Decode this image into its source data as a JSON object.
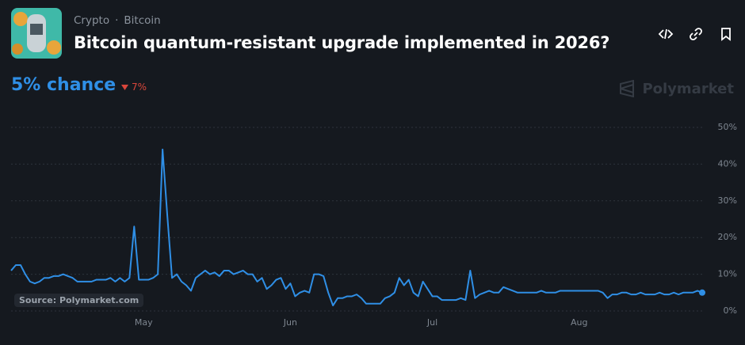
{
  "header": {
    "categories": [
      "Crypto",
      "Bitcoin"
    ],
    "title": "Bitcoin quantum-resistant upgrade implemented in 2026?",
    "chance": "5% chance",
    "change": "7%",
    "brand": "Polymarket"
  },
  "chart_data": {
    "type": "line",
    "color": "#2f8fe6",
    "source": "Source: Polymarket.com",
    "xlim": [
      0,
      146
    ],
    "xticks": [
      {
        "value": 28,
        "label": "May"
      },
      {
        "value": 59,
        "label": "Jun"
      },
      {
        "value": 89,
        "label": "Jul"
      },
      {
        "value": 120,
        "label": "Aug"
      }
    ],
    "ylim": [
      0,
      50
    ],
    "yticks": [
      {
        "value": 0,
        "label": "0%"
      },
      {
        "value": 10,
        "label": "10%"
      },
      {
        "value": 20,
        "label": "20%"
      },
      {
        "value": 30,
        "label": "30%"
      },
      {
        "value": 40,
        "label": "40%"
      },
      {
        "value": 50,
        "label": "50%"
      }
    ],
    "grid": true,
    "values": [
      11,
      12.5,
      12.5,
      10,
      8,
      7.5,
      8,
      9,
      9,
      9.5,
      9.5,
      10,
      9.5,
      9,
      8,
      8,
      8,
      8,
      8.5,
      8.5,
      8.5,
      9,
      8,
      9,
      8,
      9,
      23,
      8.5,
      8.5,
      8.5,
      9,
      10,
      44,
      26,
      9,
      10,
      8,
      7,
      5.5,
      9,
      10,
      11,
      10,
      10.5,
      9.5,
      11,
      11,
      10,
      10.5,
      11,
      10,
      10,
      8,
      9,
      6,
      7,
      8.5,
      9,
      6,
      7.5,
      4,
      5,
      5.5,
      5,
      10,
      10,
      9.5,
      5,
      1.5,
      3.5,
      3.5,
      4,
      4,
      4.5,
      3.5,
      2,
      2,
      2,
      2,
      3.5,
      4,
      5,
      9,
      7,
      8.5,
      5,
      4,
      8,
      6,
      4,
      4,
      3,
      3,
      3,
      3,
      3.5,
      3,
      11,
      3.5,
      4.5,
      5,
      5.5,
      5,
      5,
      6.5,
      6,
      5.5,
      5,
      5,
      5,
      5,
      5,
      5.5,
      5,
      5,
      5,
      5.5,
      5.5,
      5.5,
      5.5,
      5.5,
      5.5,
      5.5,
      5.5,
      5.5,
      5,
      3.5,
      4.5,
      4.5,
      5,
      5,
      4.5,
      4.5,
      5,
      4.5,
      4.5,
      4.5,
      5,
      4.5,
      4.5,
      5,
      4.5,
      5,
      5,
      5,
      5.5,
      5
    ]
  }
}
